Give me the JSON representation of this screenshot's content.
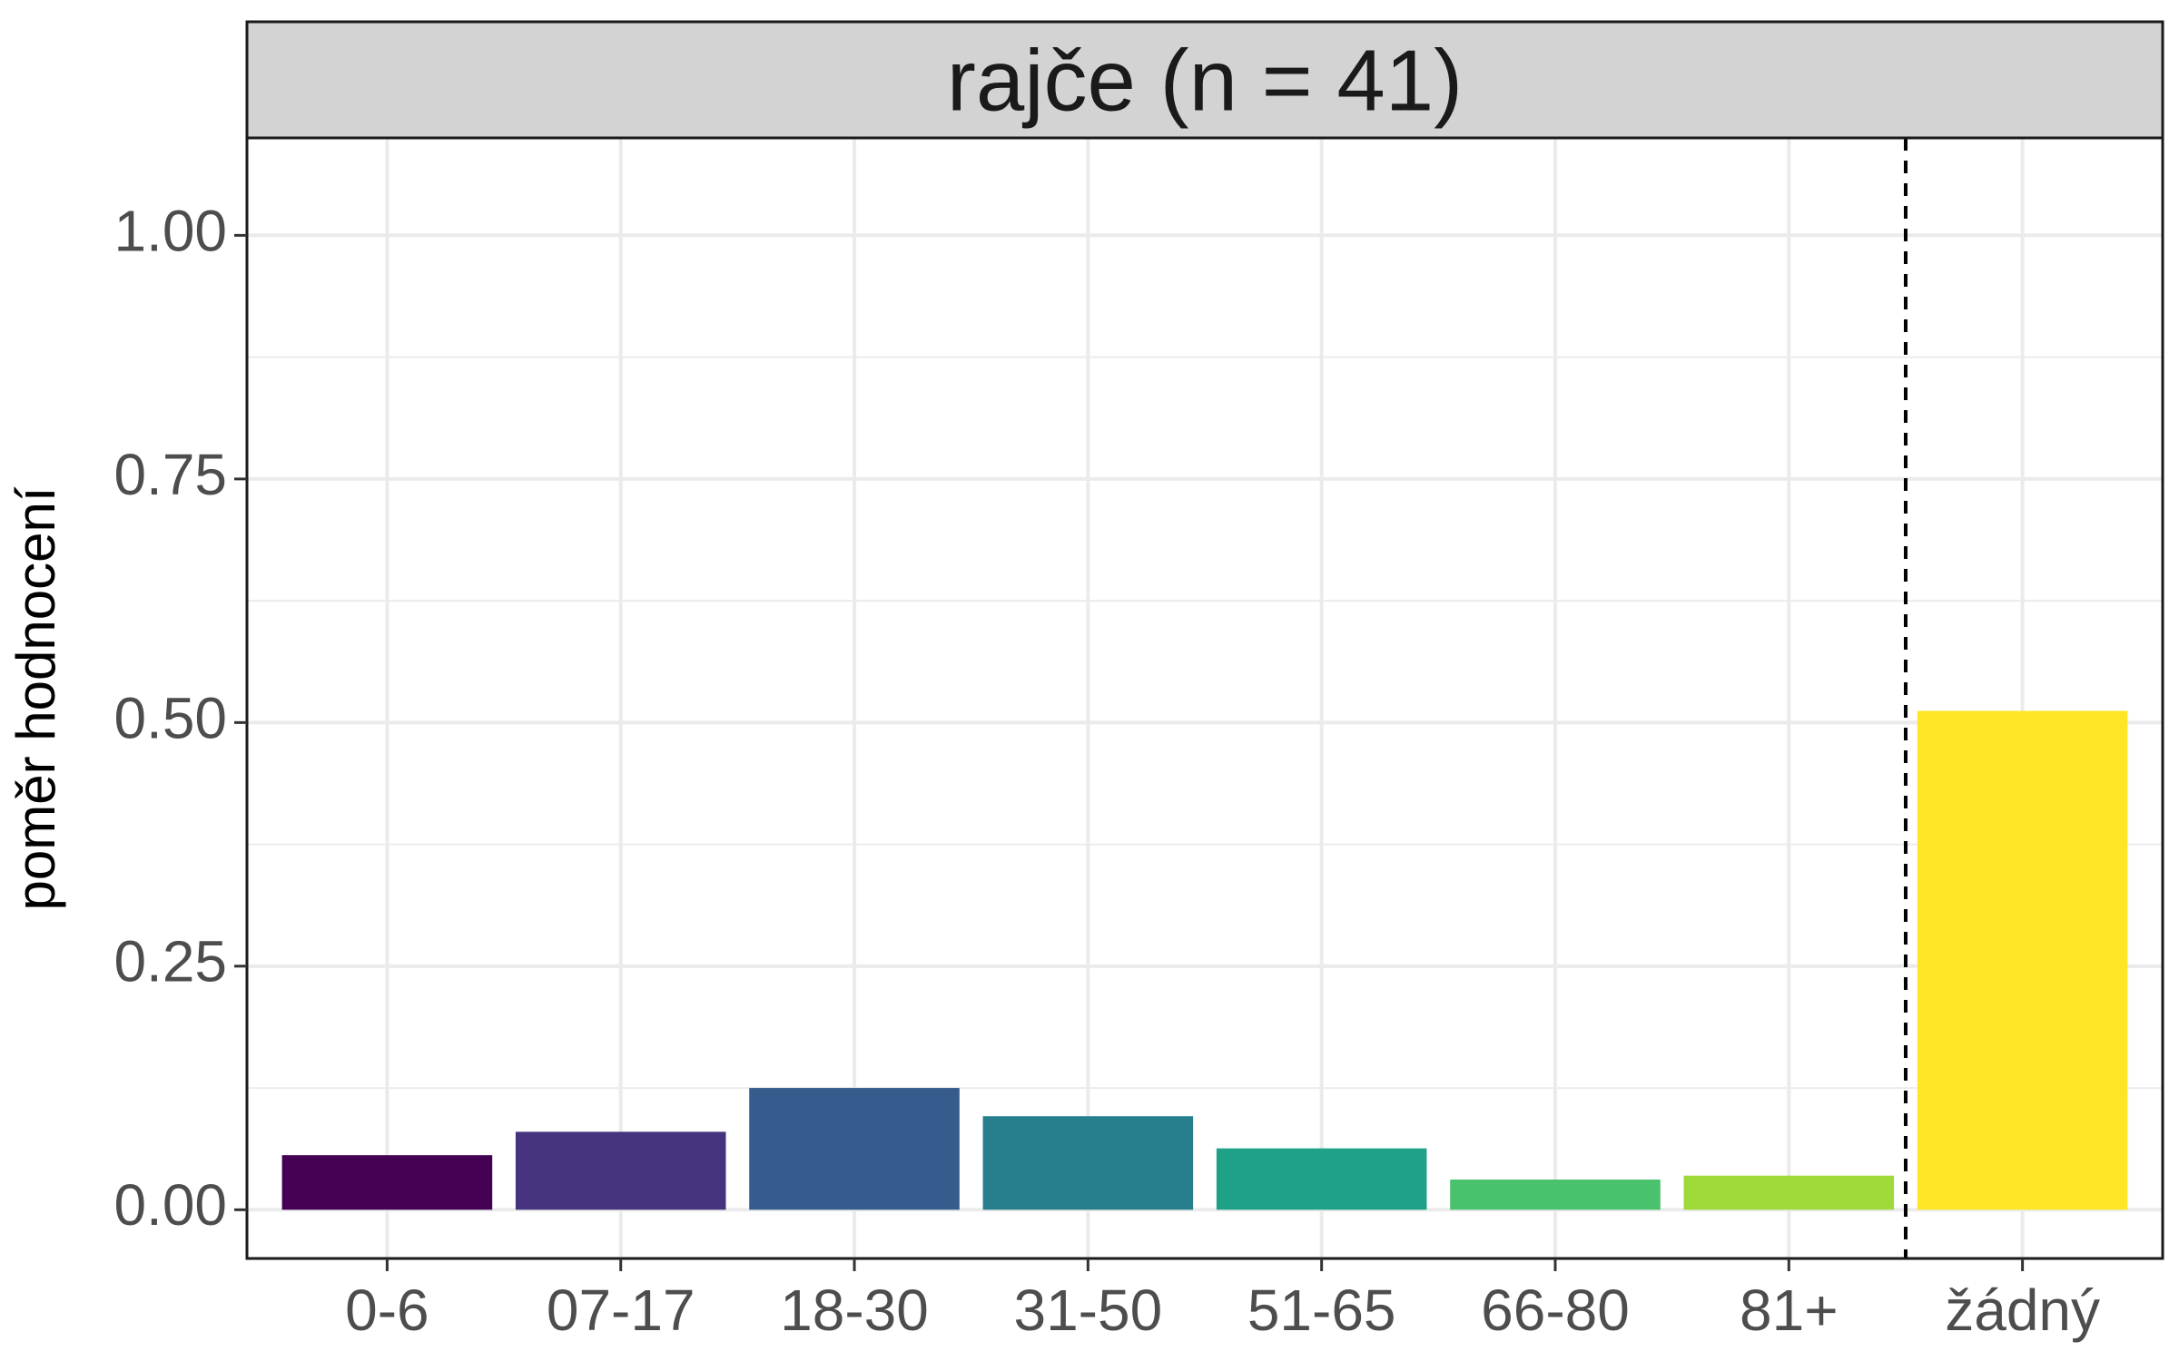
{
  "chart_data": {
    "type": "bar",
    "title": "rajče (n = 41)",
    "xlabel": "",
    "ylabel": "poměr hodnocení",
    "ylim": [
      -0.05,
      1.1
    ],
    "y_ticks": [
      0.0,
      0.25,
      0.5,
      0.75,
      1.0
    ],
    "y_tick_labels": [
      "0.00",
      "0.25",
      "0.50",
      "0.75",
      "1.00"
    ],
    "grid": true,
    "legend": "none",
    "categories": [
      "0-6",
      "07-17",
      "18-30",
      "31-50",
      "51-65",
      "66-80",
      "81+",
      "žádný"
    ],
    "values": [
      0.056,
      0.08,
      0.125,
      0.096,
      0.063,
      0.031,
      0.035,
      0.512
    ],
    "colors": [
      "#440154",
      "#46337E",
      "#365C8D",
      "#277F8E",
      "#1FA187",
      "#4AC16D",
      "#9FDA3A",
      "#FDE725"
    ],
    "reference_line": {
      "between": [
        "81+",
        "žádný"
      ],
      "style": "dashed",
      "color": "#000000"
    }
  }
}
